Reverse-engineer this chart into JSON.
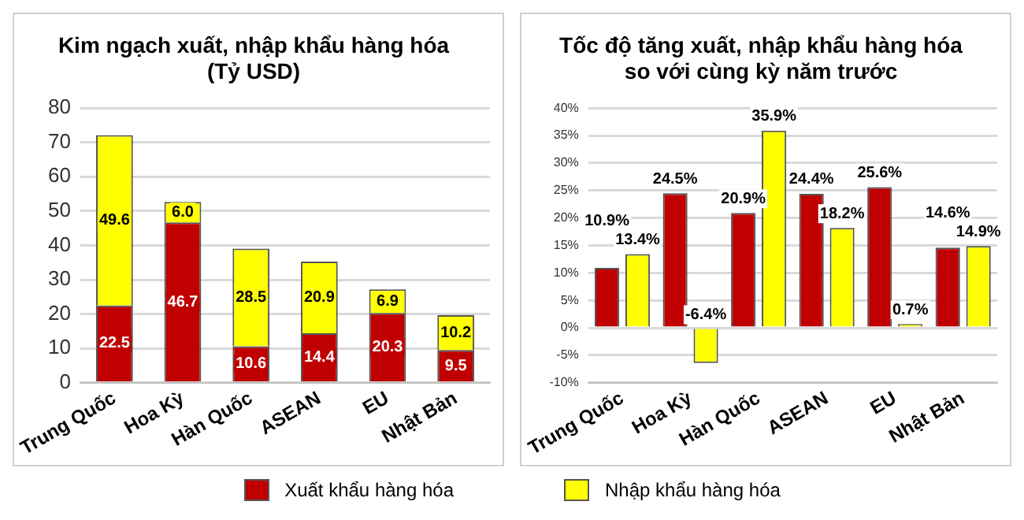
{
  "chart_data": [
    {
      "type": "bar",
      "title": "Kim ngạch xuất, nhập khẩu hàng hóa\n(Tỷ USD)",
      "categories": [
        "Trung Quốc",
        "Hoa Kỳ",
        "Hàn Quốc",
        "ASEAN",
        "EU",
        "Nhật Bản"
      ],
      "stacked": true,
      "ylim": [
        0,
        80
      ],
      "yticks": [
        0,
        10,
        20,
        30,
        40,
        50,
        60,
        70,
        80
      ],
      "grid": "y",
      "legend": "bottom",
      "series": [
        {
          "name": "Xuất khẩu hàng hóa",
          "color": "#c00000",
          "values": [
            22.5,
            46.7,
            10.6,
            14.4,
            20.3,
            9.5
          ],
          "value_labels": [
            "22.5",
            "46.7",
            "10.6",
            "14.4",
            "20.3",
            "9.5"
          ]
        },
        {
          "name": "Nhập khẩu hàng hóa",
          "color": "#ffff00",
          "values": [
            49.6,
            6.0,
            28.5,
            20.9,
            6.9,
            10.2
          ],
          "value_labels": [
            "49.6",
            "6.0",
            "28.5",
            "20.9",
            "6.9",
            "10.2"
          ]
        }
      ]
    },
    {
      "type": "bar",
      "title": "Tốc độ tăng xuất, nhập khẩu hàng hóa\nso với cùng kỳ năm trước",
      "categories": [
        "Trung Quốc",
        "Hoa Kỳ",
        "Hàn Quốc",
        "ASEAN",
        "EU",
        "Nhật Bản"
      ],
      "ylim": [
        -10,
        40
      ],
      "yticks": [
        {
          "value": -10,
          "label": "-10%"
        },
        {
          "value": -5,
          "label": "-5%"
        },
        {
          "value": 0,
          "label": "0%"
        },
        {
          "value": 5,
          "label": "5%"
        },
        {
          "value": 10,
          "label": "10%"
        },
        {
          "value": 15,
          "label": "15%"
        },
        {
          "value": 20,
          "label": "20%"
        },
        {
          "value": 25,
          "label": "25%"
        },
        {
          "value": 30,
          "label": "30%"
        },
        {
          "value": 35,
          "label": "35%"
        },
        {
          "value": 40,
          "label": "40%"
        }
      ],
      "grid": "y",
      "series": [
        {
          "color": "#c00000",
          "values": [
            10.9,
            24.5,
            20.9,
            24.4,
            25.6,
            14.6
          ],
          "value_labels": [
            "10.9%",
            "24.5%",
            "20.9%",
            "24.4%",
            "25.6%",
            "14.6%"
          ]
        },
        {
          "color": "#ffff00",
          "values": [
            13.4,
            -6.4,
            35.9,
            18.2,
            0.7,
            14.9
          ],
          "value_labels": [
            "13.4%",
            "-6.4%",
            "35.9%",
            "18.2%",
            "0.7%",
            "14.9%"
          ]
        }
      ]
    }
  ]
}
